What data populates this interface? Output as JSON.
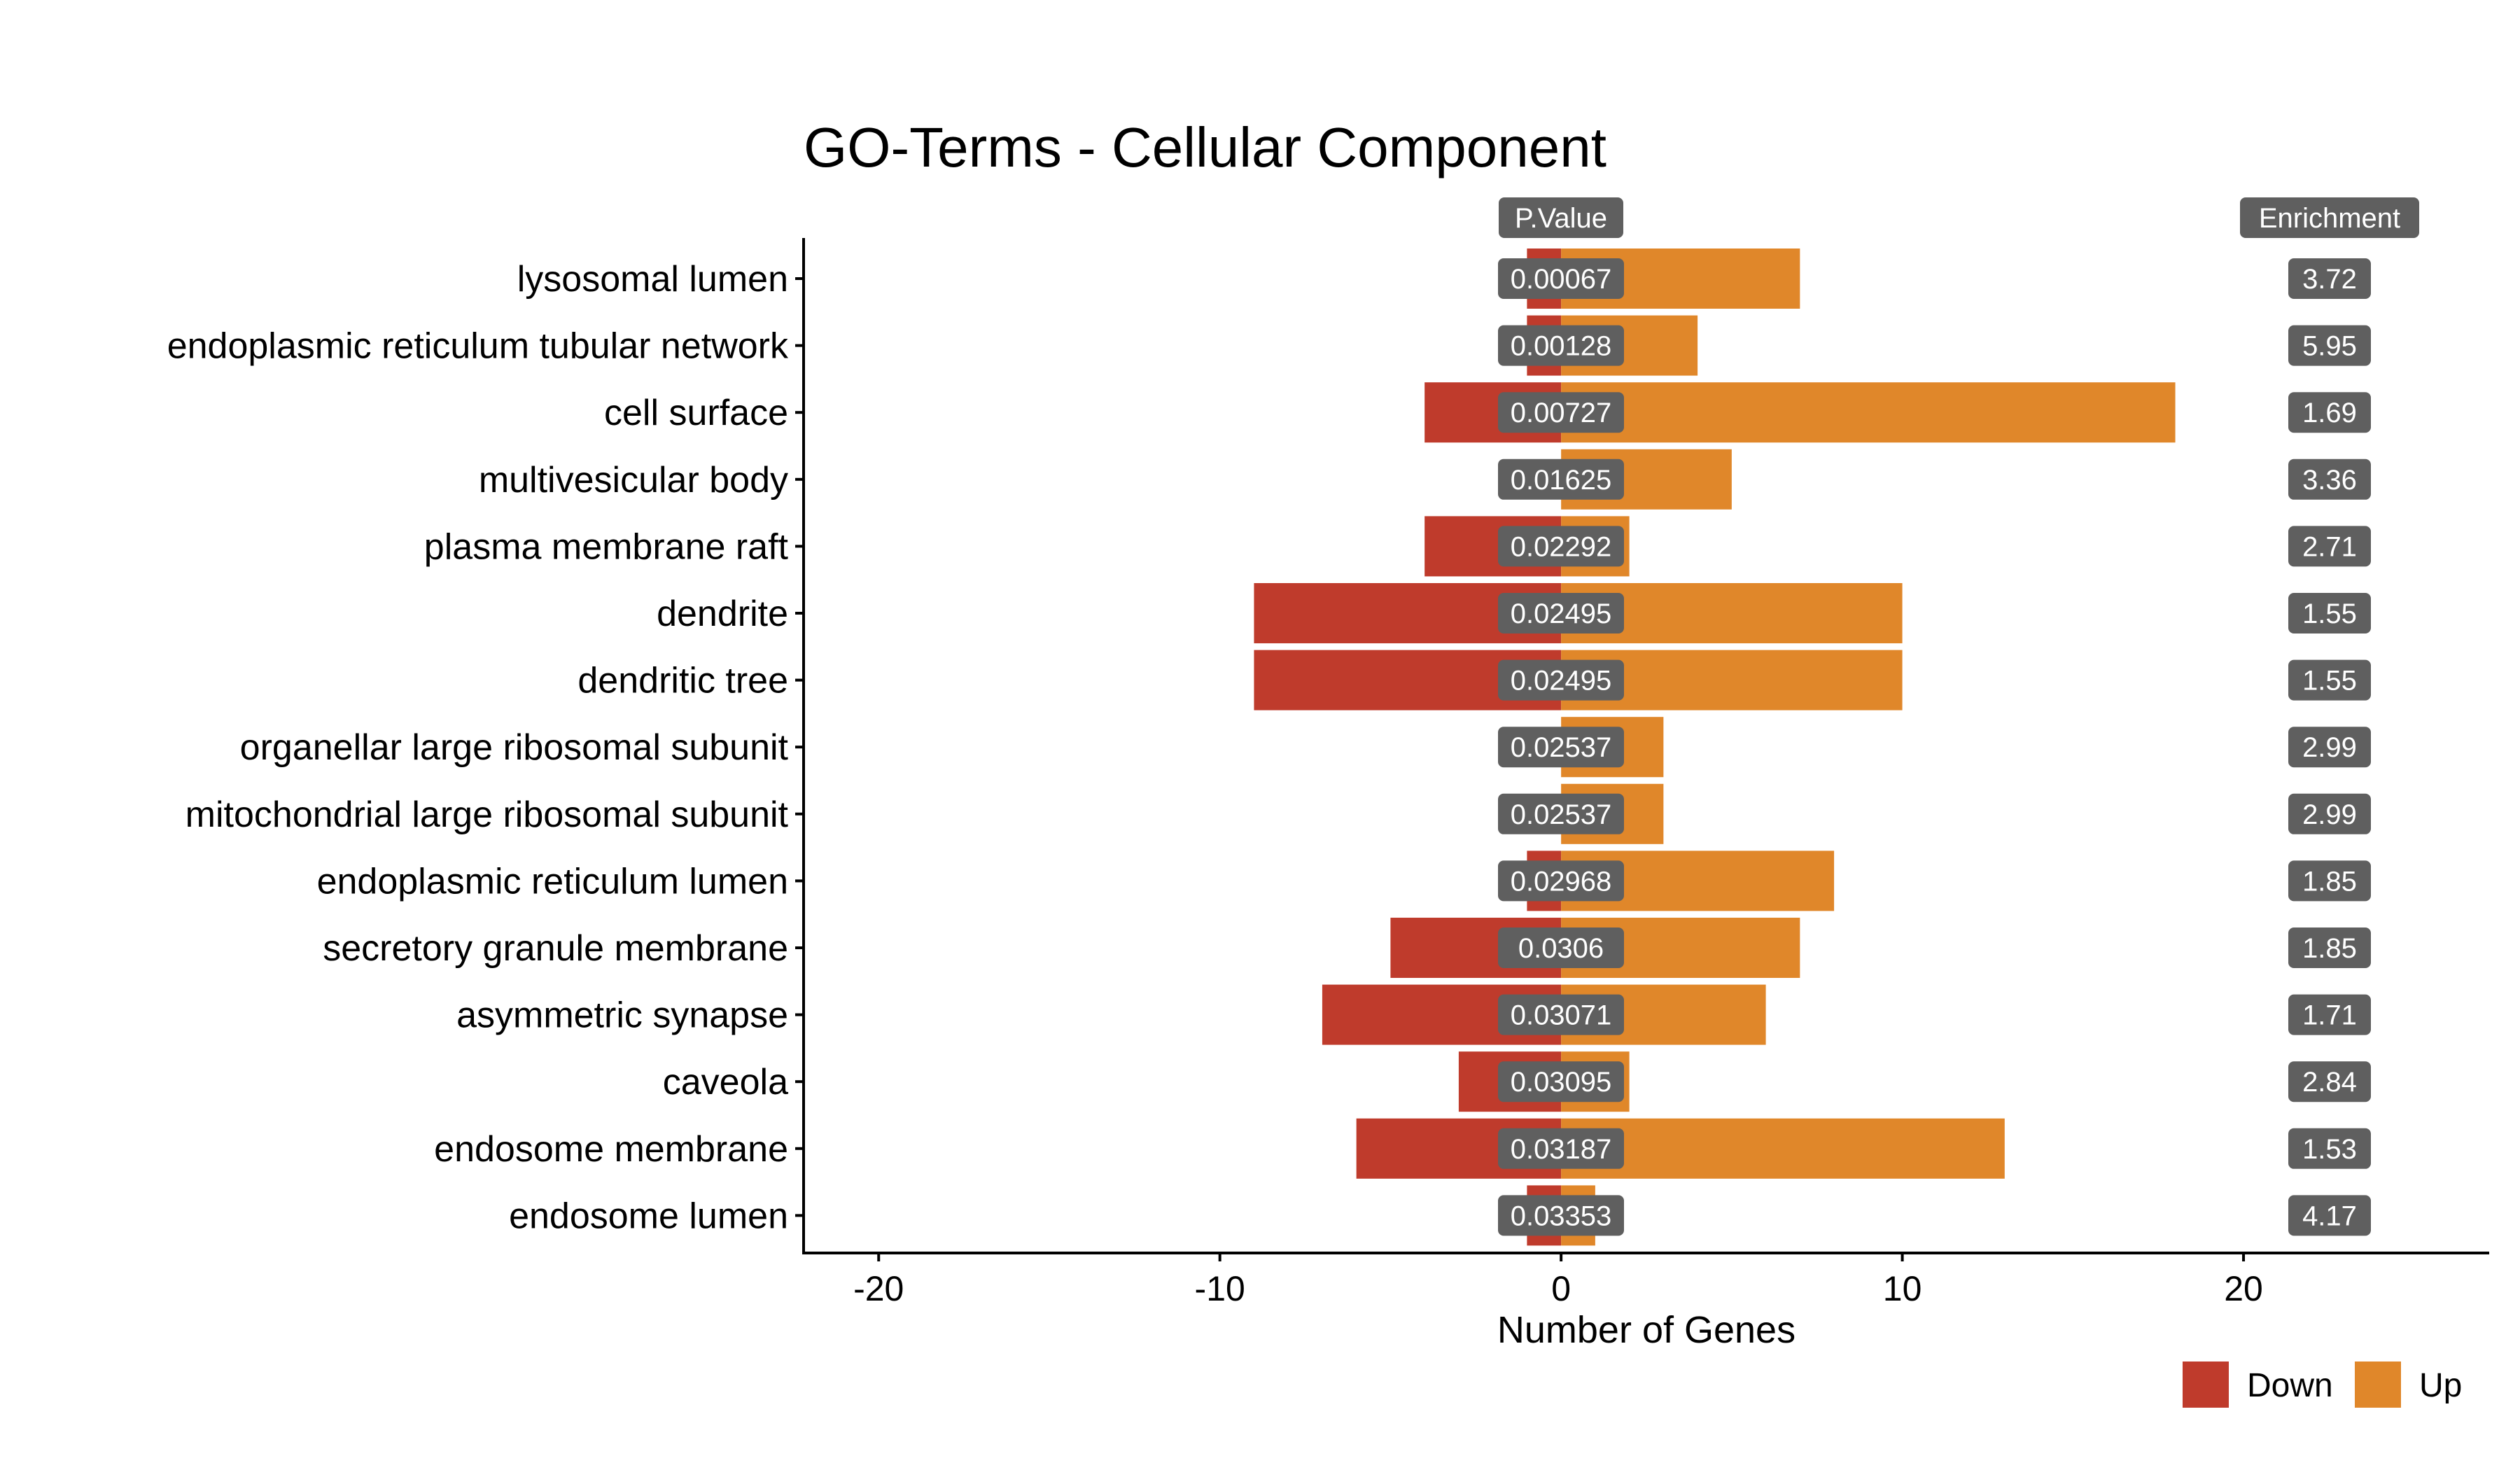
{
  "chart_data": {
    "type": "bar",
    "orientation": "horizontal",
    "stacking": "diverging",
    "title": "GO-Terms - Cellular Component",
    "xlabel": "Number of Genes",
    "ylabel": "",
    "xlim": [
      -22.2,
      27.2
    ],
    "x_ticks": [
      -20,
      -10,
      0,
      10,
      20
    ],
    "x_tick_labels": [
      "-20",
      "-10",
      "0",
      "10",
      "20"
    ],
    "grid": false,
    "legend_position": "bottom-right",
    "pvalue_header": "P.Value",
    "enrichment_header": "Enrichment",
    "categories": [
      "lysosomal lumen",
      "endoplasmic reticulum tubular network",
      "cell surface",
      "multivesicular body",
      "plasma membrane raft",
      "dendrite",
      "dendritic tree",
      "organellar large ribosomal subunit",
      "mitochondrial large ribosomal subunit",
      "endoplasmic reticulum lumen",
      "secretory granule membrane",
      "asymmetric synapse",
      "caveola",
      "endosome membrane",
      "endosome lumen"
    ],
    "series": [
      {
        "name": "Down",
        "color": "#bf3b2c",
        "values": [
          -1,
          -1,
          -4,
          0,
          -4,
          -9,
          -9,
          0,
          0,
          -1,
          -5,
          -7,
          -3,
          -6,
          -1
        ]
      },
      {
        "name": "Up",
        "color": "#e0872a",
        "values": [
          7,
          4,
          18,
          5,
          2,
          10,
          10,
          3,
          3,
          8,
          7,
          6,
          2,
          13,
          1
        ]
      }
    ],
    "p_values": [
      "0.00067",
      "0.00128",
      "0.00727",
      "0.01625",
      "0.02292",
      "0.02495",
      "0.02495",
      "0.02537",
      "0.02537",
      "0.02968",
      "0.0306",
      "0.03071",
      "0.03095",
      "0.03187",
      "0.03353"
    ],
    "enrichment": [
      "3.72",
      "5.95",
      "1.69",
      "3.36",
      "2.71",
      "1.55",
      "1.55",
      "2.99",
      "2.99",
      "1.85",
      "1.85",
      "1.71",
      "2.84",
      "1.53",
      "4.17"
    ]
  },
  "colors": {
    "label_box": "#5f5f5f",
    "axis": "#000000"
  }
}
